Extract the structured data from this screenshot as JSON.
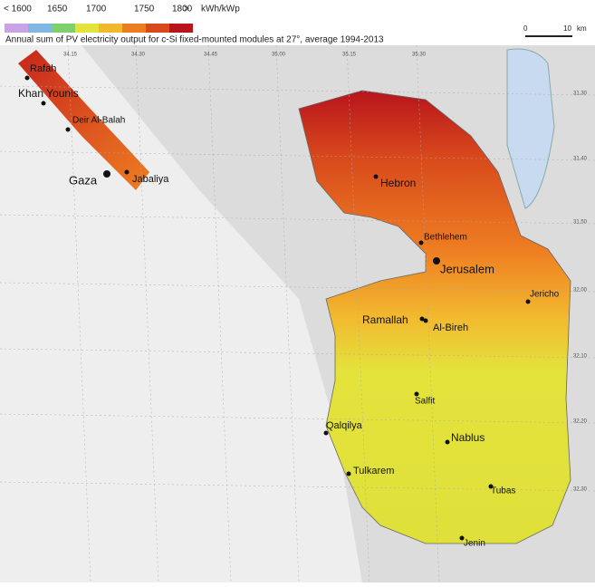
{
  "legend": {
    "labels": [
      "< 1600",
      "1650",
      "1700",
      "1750",
      "1800",
      ">"
    ],
    "unit": "kWh/kWp",
    "colors": [
      "#c9a3e6",
      "#7fb8e3",
      "#7fd06c",
      "#e4e33c",
      "#f2b92f",
      "#ee7d22",
      "#d84a1c",
      "#b8141c"
    ]
  },
  "title": "Annual sum of PV electricity output for c-Si fixed-mounted modules at 27°, average 1994-2013",
  "scale": {
    "labels": [
      "0",
      "10",
      "km"
    ]
  },
  "graticule": {
    "top": [
      "34.15",
      "34.30",
      "34.45",
      "35.00",
      "35.15",
      "35.30"
    ],
    "right": [
      "31.30",
      "31.40",
      "31.50",
      "32.00",
      "32.10",
      "32.20",
      "32.30"
    ]
  },
  "cities": [
    "Rafah",
    "Khan Younis",
    "Deir Al-Balah",
    "Gaza",
    "Jabaliya",
    "Hebron",
    "Bethlehem",
    "Jerusalem",
    "Jericho",
    "Ramallah",
    "Al-Bireh",
    "Salfit",
    "Qalqilya",
    "Nablus",
    "Tulkarem",
    "Tubas",
    "Jenin"
  ]
}
